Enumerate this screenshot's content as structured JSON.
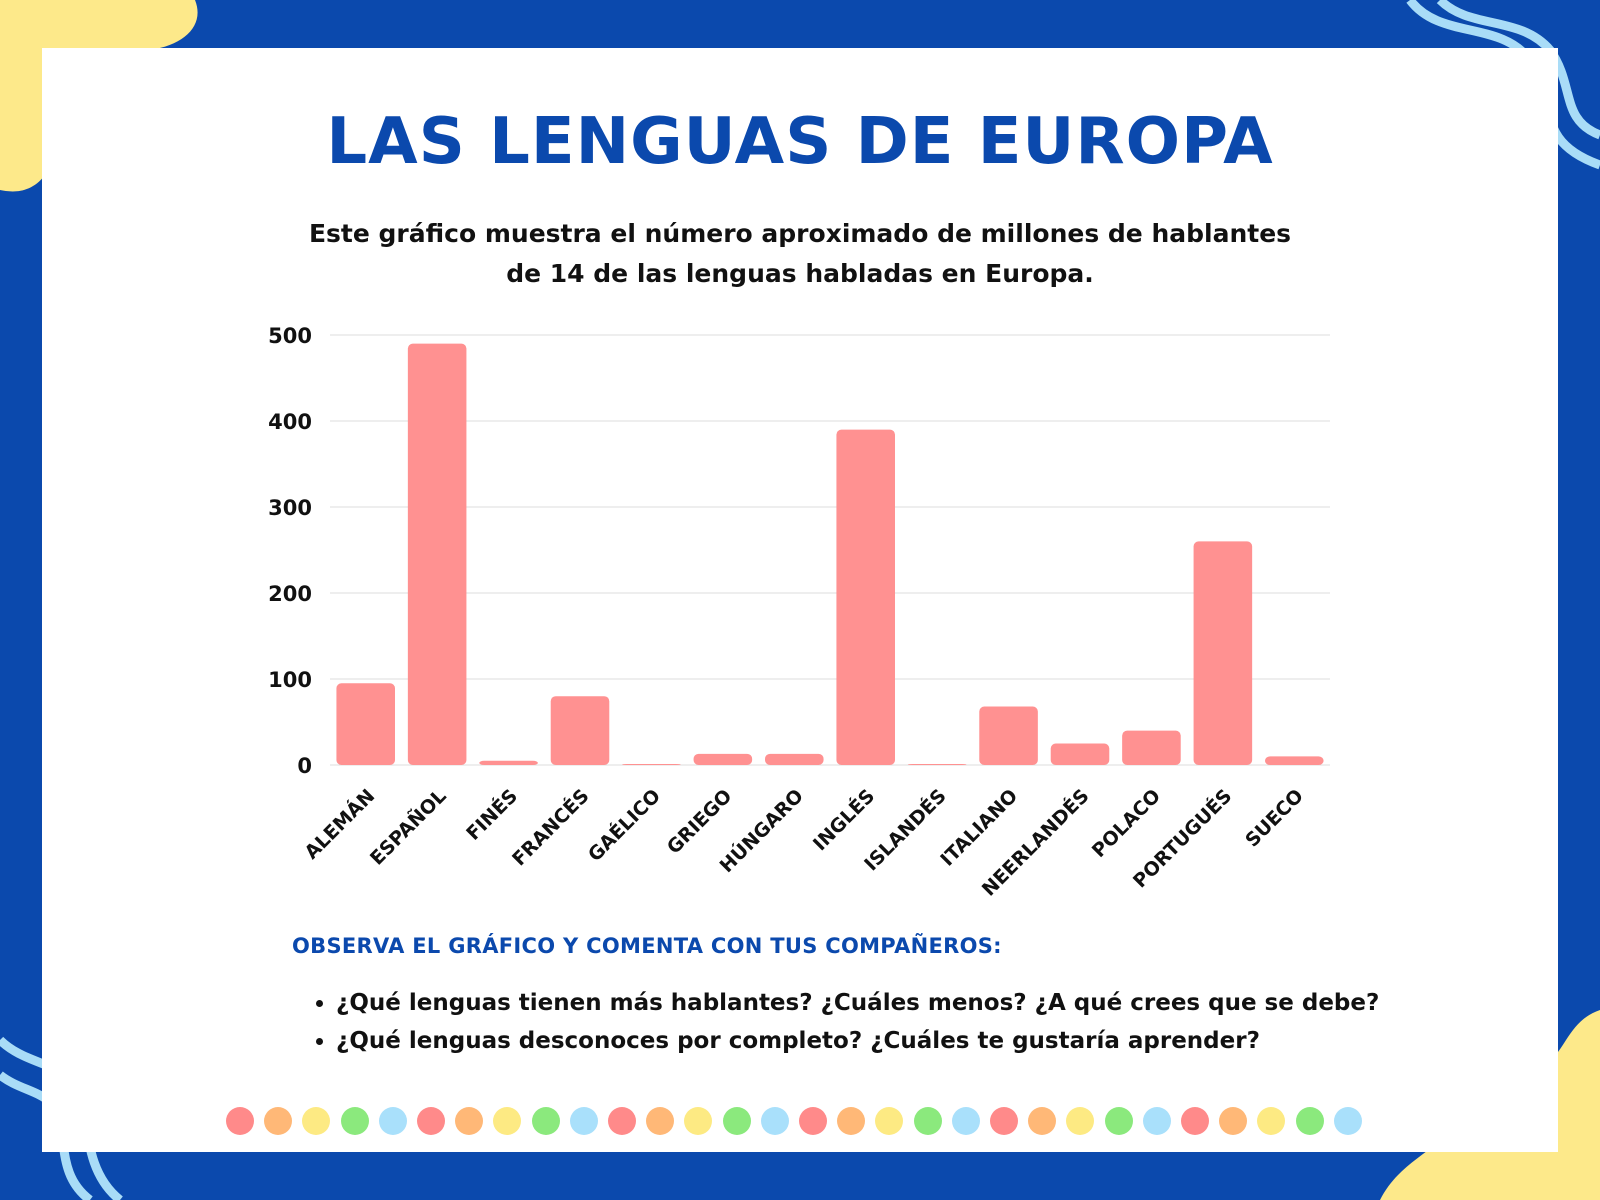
{
  "title": "LAS LENGUAS DE EUROPA",
  "subtitle": "Este gráfico muestra el número aproximado de millones de hablantes de 14 de las lenguas habladas en Europa.",
  "prompt": "OBSERVA EL GRÁFICO Y COMENTA CON TUS COMPAÑEROS:",
  "questions": [
    "¿Qué lenguas tienen más hablantes? ¿Cuáles menos? ¿A qué crees que se debe?",
    "¿Qué lenguas desconoces por completo? ¿Cuáles te gustaría aprender?"
  ],
  "colors": {
    "frame": "#0b49ad",
    "card": "#ffffff",
    "bar": "#ff9191",
    "yellow_blob": "#fde98a",
    "wave_light": "#a9dcf7",
    "grid": "#dcdcdc"
  },
  "dot_colors": [
    "#ff8a8a",
    "#ffb877",
    "#fdea83",
    "#8be97d",
    "#a9e0fb",
    "#ff8a8a",
    "#ffb877",
    "#fdea83",
    "#8be97d",
    "#a9e0fb",
    "#ff8a8a",
    "#ffb877",
    "#fdea83",
    "#8be97d",
    "#a9e0fb",
    "#ff8a8a",
    "#ffb877",
    "#fdea83",
    "#8be97d",
    "#a9e0fb",
    "#ff8a8a",
    "#ffb877",
    "#fdea83",
    "#8be97d",
    "#a9e0fb",
    "#ff8a8a",
    "#ffb877",
    "#fdea83",
    "#8be97d",
    "#a9e0fb"
  ],
  "chart_data": {
    "type": "bar",
    "categories": [
      "ALEMÁN",
      "ESPAÑOL",
      "FINÉS",
      "FRANCÉS",
      "GAÉLICO",
      "GRIEGO",
      "HÚNGARO",
      "INGLÉS",
      "ISLANDÉS",
      "ITALIANO",
      "NEERLANDÉS",
      "POLACO",
      "PORTUGUÉS",
      "SUECO"
    ],
    "values": [
      95,
      490,
      5,
      80,
      1,
      13,
      13,
      390,
      0.4,
      68,
      25,
      40,
      260,
      10
    ],
    "yticks": [
      0,
      100,
      200,
      300,
      400,
      500
    ],
    "ylim": [
      0,
      500
    ],
    "grid": true,
    "legend": "none",
    "xlabel": "",
    "ylabel": ""
  }
}
